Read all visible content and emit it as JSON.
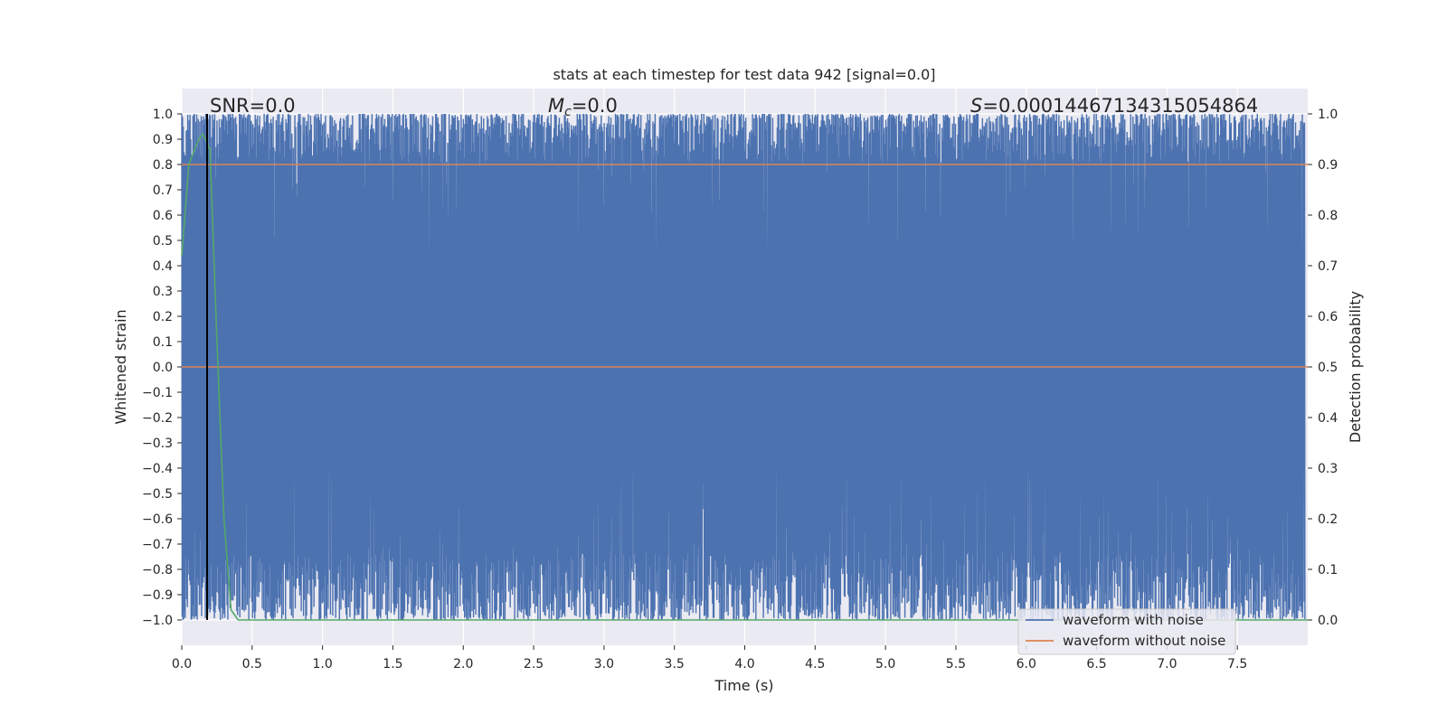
{
  "chart_data": {
    "type": "line",
    "title": "stats at each timestep for test data 942 [signal=0.0]",
    "xlabel": "Time (s)",
    "ylabel": "Whitened strain",
    "y2label": "Detection probability",
    "xlim": [
      0.0,
      8.0
    ],
    "ylim": [
      -1.1,
      1.1
    ],
    "y2lim": [
      -0.05,
      1.05
    ],
    "xticks": [
      0.0,
      0.5,
      1.0,
      1.5,
      2.0,
      2.5,
      3.0,
      3.5,
      4.0,
      4.5,
      5.0,
      5.5,
      6.0,
      6.5,
      7.0,
      7.5
    ],
    "xtick_labels": [
      "0.0",
      "0.5",
      "1.0",
      "1.5",
      "2.0",
      "2.5",
      "3.0",
      "3.5",
      "4.0",
      "4.5",
      "5.0",
      "5.5",
      "6.0",
      "6.5",
      "7.0",
      "7.5"
    ],
    "yticks": [
      1.0,
      0.9,
      0.8,
      0.7,
      0.6,
      0.5,
      0.4,
      0.3,
      0.2,
      0.1,
      0.0,
      -0.1,
      -0.2,
      -0.3,
      -0.4,
      -0.5,
      -0.6,
      -0.7,
      -0.8,
      -0.9,
      -1.0
    ],
    "ytick_labels": [
      "1.0",
      "0.9",
      "0.8",
      "0.7",
      "0.6",
      "0.5",
      "0.4",
      "0.3",
      "0.2",
      "0.1",
      "0.0",
      "−0.1",
      "−0.2",
      "−0.3",
      "−0.4",
      "−0.5",
      "−0.6",
      "−0.7",
      "−0.8",
      "−0.9",
      "−1.0"
    ],
    "y2ticks": [
      1.0,
      0.9,
      0.8,
      0.7,
      0.6,
      0.5,
      0.4,
      0.3,
      0.2,
      0.1,
      0.0
    ],
    "y2tick_labels": [
      "1.0",
      "0.9",
      "0.8",
      "0.7",
      "0.6",
      "0.5",
      "0.4",
      "0.3",
      "0.2",
      "0.1",
      "0.0"
    ],
    "grid": true,
    "annotations": {
      "snr": "SNR=0.0",
      "mc_symbol": "M",
      "mc_subscript": "c",
      "mc_value": "=0.0",
      "s_symbol": "S",
      "s_value": "=0.00014467134315054864"
    },
    "legend": {
      "placement": "lower-right",
      "entries": [
        "waveform with noise",
        "waveform without noise"
      ]
    },
    "series": [
      {
        "name": "waveform with noise",
        "color": "#4c72b0",
        "description": "dense whitened noise between about -1.0 and 1.0"
      },
      {
        "name": "waveform without noise",
        "color": "#dd8452",
        "x": [
          0.0,
          8.0
        ],
        "values": [
          0.0,
          0.0
        ]
      },
      {
        "axis": "right",
        "color": "#dd8452",
        "x": [
          0.0,
          8.0
        ],
        "values": [
          0.9,
          0.9
        ]
      },
      {
        "axis": "right",
        "color": "#55a868",
        "x": [
          0.0,
          0.05,
          0.12,
          0.15,
          0.2,
          0.25,
          0.3,
          0.35,
          0.4,
          8.0
        ],
        "values": [
          0.72,
          0.9,
          0.95,
          0.96,
          0.93,
          0.55,
          0.2,
          0.02,
          0.0,
          0.0
        ]
      }
    ],
    "vline": {
      "x": 0.18,
      "color": "#000000"
    }
  }
}
